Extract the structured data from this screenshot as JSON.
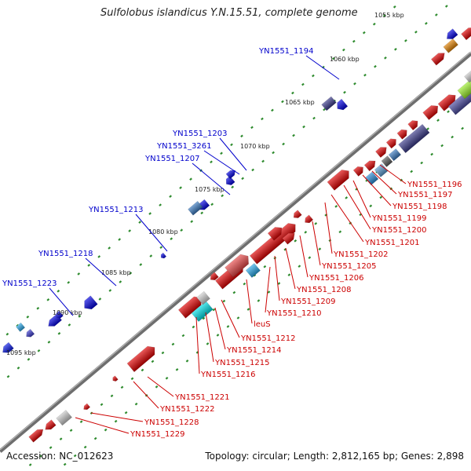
{
  "title": "Sulfolobus islandicus Y.N.15.51, complete genome",
  "footer": {
    "accession": "Accession: NC_012623",
    "topology": "Topology: circular; Length: 2,812,165 bp; Genes: 2,898"
  },
  "colors": {
    "backbone": "#777777",
    "top_strand_label": "#0000cc",
    "bottom_strand_label": "#cc0000",
    "tick": "#2e8b2e"
  },
  "kbp_labels": [
    "1055 kbp",
    "1060 kbp",
    "1065 kbp",
    "1070 kbp",
    "1075 kbp",
    "1080 kbp",
    "1085 kbp",
    "1090 kbp",
    "1095 kbp"
  ],
  "top_strand_genes": [
    "YN1551_1194",
    "YN1551_1203",
    "YN1551_3261",
    "YN1551_1207",
    "YN1551_1213",
    "YN1551_1218",
    "YN1551_1223"
  ],
  "bottom_strand_genes": [
    "YN1551_1196",
    "YN1551_1197",
    "YN1551_1198",
    "YN1551_1199",
    "YN1551_1200",
    "YN1551_1201",
    "YN1551_1202",
    "YN1551_1205",
    "YN1551_1206",
    "YN1551_1208",
    "YN1551_1209",
    "YN1551_1210",
    "leuS",
    "YN1551_1212",
    "YN1551_1214",
    "YN1551_1215",
    "YN1551_1216",
    "YN1551_1221",
    "YN1551_1222",
    "YN1551_1228",
    "YN1551_1229"
  ]
}
